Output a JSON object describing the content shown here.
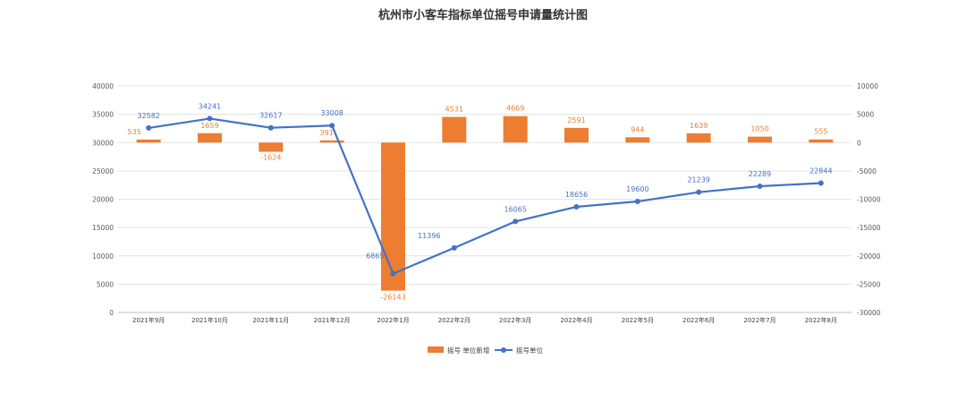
{
  "chart_data": {
    "type": "bar+line",
    "title": "杭州市小客车指标单位摇号申请量统计图",
    "categories": [
      "2021年9月",
      "2021年10月",
      "2021年11月",
      "2021年12月",
      "2022年1月",
      "2022年2月",
      "2022年3月",
      "2022年4月",
      "2022年5月",
      "2022年6月",
      "2022年7月",
      "2022年8月"
    ],
    "series": [
      {
        "name": "摇号 单位新增",
        "type": "bar",
        "axis": "right",
        "color": "#ED7D31",
        "values": [
          535,
          1659,
          -1624,
          391,
          -26143,
          4531,
          4669,
          2591,
          944,
          1639,
          1050,
          555
        ],
        "labels": [
          "535",
          "1659",
          "-1624",
          "391",
          "-26143",
          "4531",
          "4669",
          "2591",
          "944",
          "1639",
          "1050",
          "555"
        ]
      },
      {
        "name": "摇号单位",
        "type": "line",
        "axis": "left",
        "color": "#4472C4",
        "values": [
          32582,
          34241,
          32617,
          33008,
          6865,
          11396,
          16065,
          18656,
          19600,
          21239,
          22289,
          22844
        ],
        "labels": [
          "32582",
          "34241",
          "32617",
          "33008",
          "6865",
          "11396",
          "16065",
          "18656",
          "19600",
          "21239",
          "22289",
          "22844"
        ]
      }
    ],
    "y_left": {
      "min": 0,
      "max": 40000,
      "ticks": [
        "0",
        "5000",
        "10000",
        "15000",
        "20000",
        "25000",
        "30000",
        "35000",
        "40000"
      ]
    },
    "y_right": {
      "min": -30000,
      "max": 10000,
      "ticks": [
        "-30000",
        "-25000",
        "-20000",
        "-15000",
        "-10000",
        "-5000",
        "0",
        "5000",
        "10000"
      ]
    },
    "grid": true,
    "legend_position": "bottom"
  }
}
